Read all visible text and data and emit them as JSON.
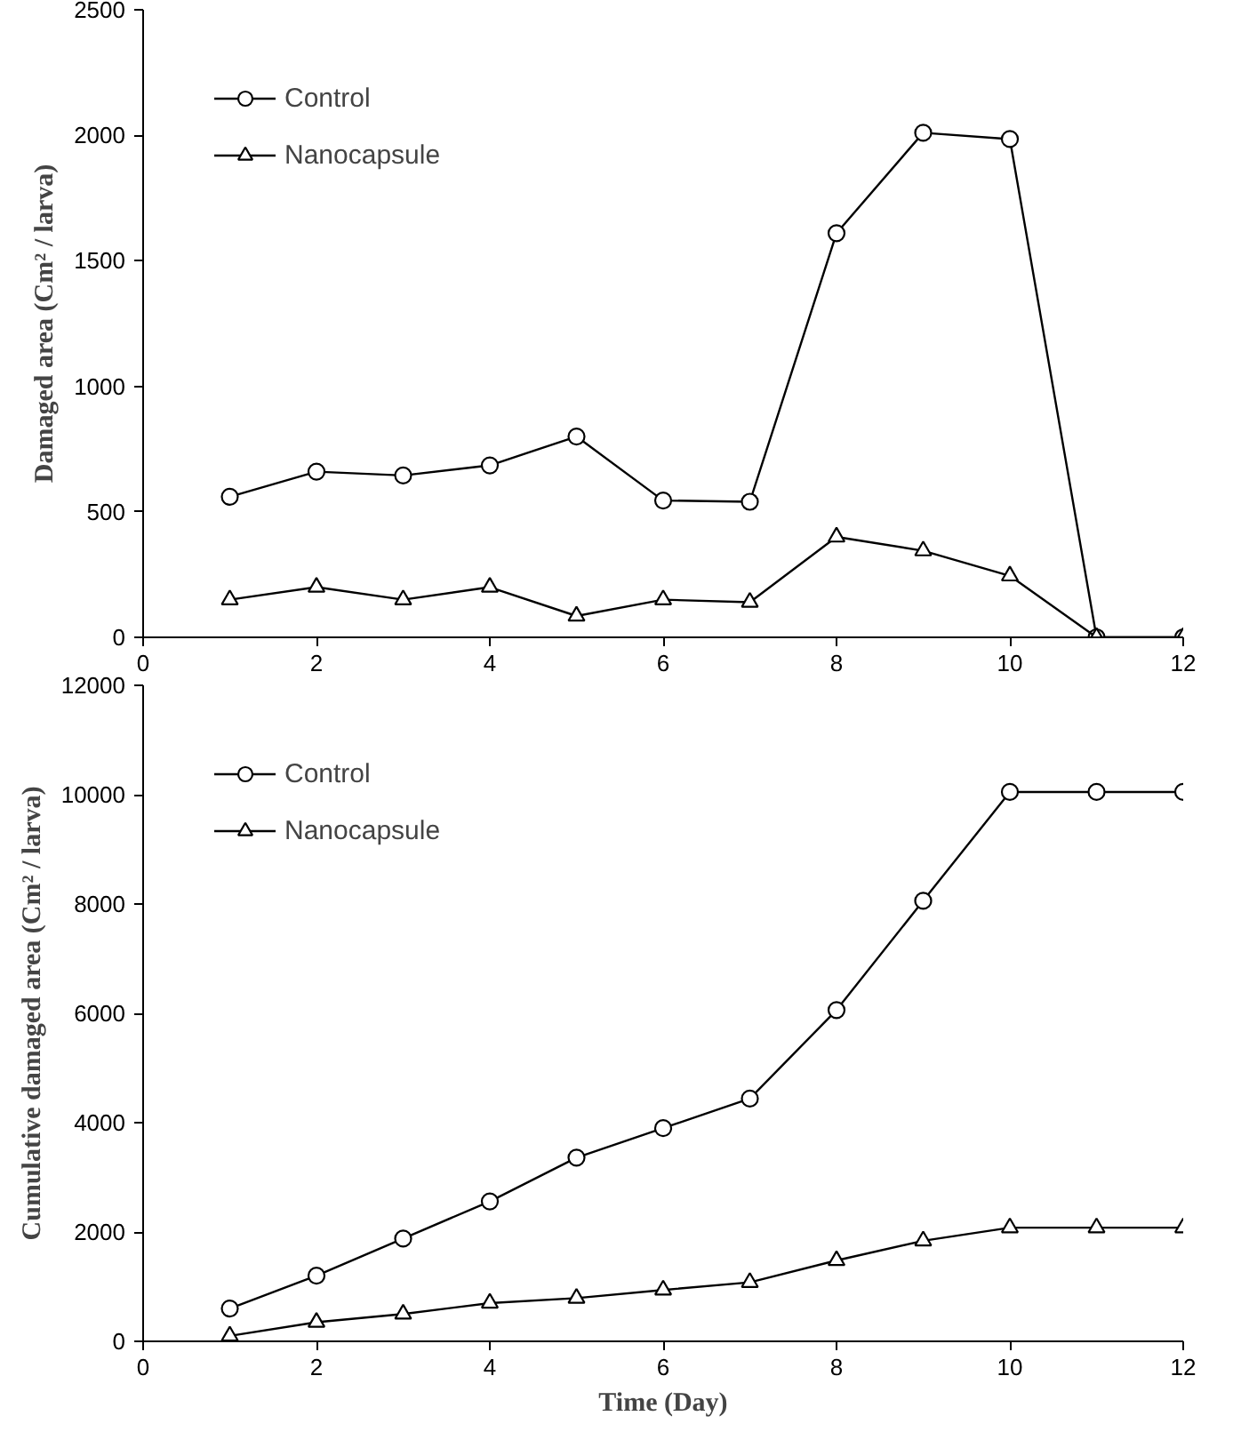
{
  "chart_data": [
    {
      "type": "line",
      "ylabel": "Damaged area (Cm² / larva)",
      "x": [
        1,
        2,
        3,
        4,
        5,
        6,
        7,
        8,
        9,
        10,
        11,
        12
      ],
      "xlim": [
        0,
        12
      ],
      "xticks": [
        0,
        2,
        4,
        6,
        8,
        10,
        12
      ],
      "ylim": [
        0,
        2500
      ],
      "yticks": [
        0,
        500,
        1000,
        1500,
        2000,
        2500
      ],
      "grid": false,
      "legend": "top left",
      "series": [
        {
          "name": "Control",
          "color": "#000000",
          "marker": "circle",
          "values": [
            560,
            660,
            645,
            685,
            800,
            545,
            540,
            1610,
            2010,
            1985,
            0,
            0
          ]
        },
        {
          "name": "Nanocapsule",
          "color": "#000000",
          "marker": "triangle",
          "values": [
            150,
            200,
            150,
            200,
            85,
            150,
            140,
            400,
            345,
            245,
            0,
            0
          ]
        }
      ]
    },
    {
      "type": "line",
      "ylabel": "Cumulative damaged area (Cm² / larva)",
      "xlabel": "Time (Day)",
      "x": [
        1,
        2,
        3,
        4,
        5,
        6,
        7,
        8,
        9,
        10,
        11,
        12
      ],
      "xlim": [
        0,
        12
      ],
      "xticks": [
        0,
        2,
        4,
        6,
        8,
        10,
        12
      ],
      "ylim": [
        0,
        12000
      ],
      "yticks": [
        0,
        2000,
        4000,
        6000,
        8000,
        10000,
        12000
      ],
      "grid": false,
      "legend": "top left",
      "series": [
        {
          "name": "Control",
          "color": "#000000",
          "marker": "circle",
          "values": [
            600,
            1200,
            1880,
            2560,
            3360,
            3900,
            4440,
            6060,
            8060,
            10050,
            10050,
            10050
          ]
        },
        {
          "name": "Nanocapsule",
          "color": "#000000",
          "marker": "triangle",
          "values": [
            100,
            350,
            500,
            700,
            790,
            940,
            1080,
            1480,
            1840,
            2080,
            2080,
            2080
          ]
        }
      ]
    }
  ]
}
